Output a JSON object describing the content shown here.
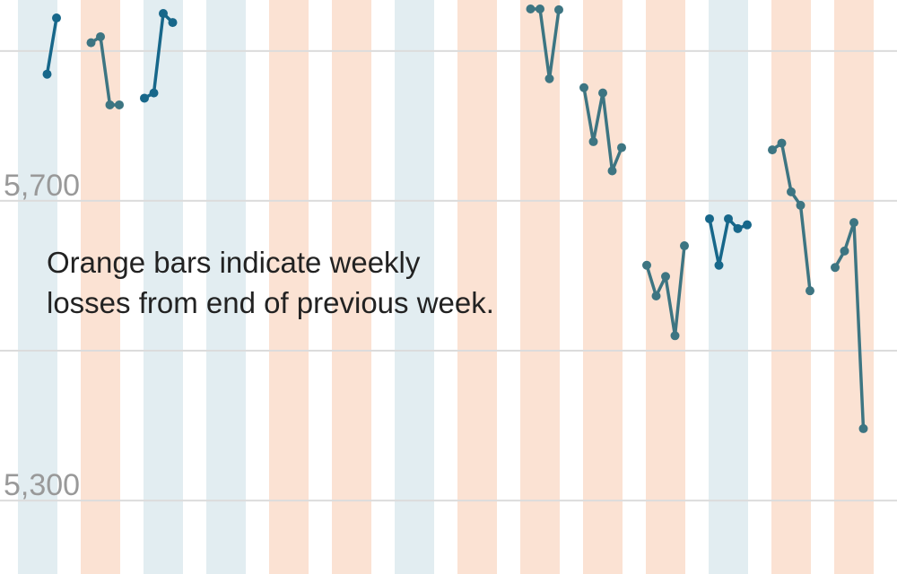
{
  "chart_data": {
    "type": "weekly-line",
    "annotation": [
      "Orange bars indicate weekly",
      "losses from end of previous week."
    ],
    "ylim": [
      5202,
      5968
    ],
    "yticks": [
      {
        "value": 5300,
        "label": "5,300"
      },
      {
        "value": 5700,
        "label": "5,700"
      }
    ],
    "grid_lines": [
      5500,
      5900
    ],
    "colors": {
      "gain_band": "#e2edf1",
      "loss_band": "#fbe2d3",
      "gain_line": "#17678a",
      "loss_line": "#3d7582"
    },
    "weeks": [
      {
        "change": "gain",
        "values": [
          null,
          null,
          null,
          5869,
          5944
        ]
      },
      {
        "change": "loss",
        "values": [
          null,
          5911,
          5919,
          5828,
          5828
        ]
      },
      {
        "change": "gain",
        "values": [
          5837,
          5844,
          5950,
          5938,
          null
        ]
      },
      {
        "change": "gain",
        "values": [
          null,
          null,
          null,
          null,
          null
        ]
      },
      {
        "change": "loss",
        "values": [
          null,
          null,
          null,
          null,
          null
        ]
      },
      {
        "change": "loss",
        "values": [
          null,
          null,
          null,
          null,
          null
        ]
      },
      {
        "change": "gain",
        "values": [
          null,
          null,
          null,
          null,
          null
        ]
      },
      {
        "change": "loss",
        "values": [
          null,
          null,
          null,
          null,
          null
        ]
      },
      {
        "change": "loss",
        "values": [
          null,
          5956,
          5956,
          5863,
          5955
        ]
      },
      {
        "change": "loss",
        "values": [
          5851,
          5779,
          5844,
          5740,
          5771
        ]
      },
      {
        "change": "loss",
        "values": [
          5614,
          5573,
          5599,
          5520,
          5640
        ]
      },
      {
        "change": "gain",
        "values": [
          5676,
          5614,
          5676,
          5663,
          5668
        ]
      },
      {
        "change": "loss",
        "values": [
          5768,
          5777,
          5712,
          5694,
          5580
        ]
      },
      {
        "change": "loss",
        "values": [
          5611,
          5633,
          5671,
          5396,
          null
        ]
      }
    ]
  }
}
